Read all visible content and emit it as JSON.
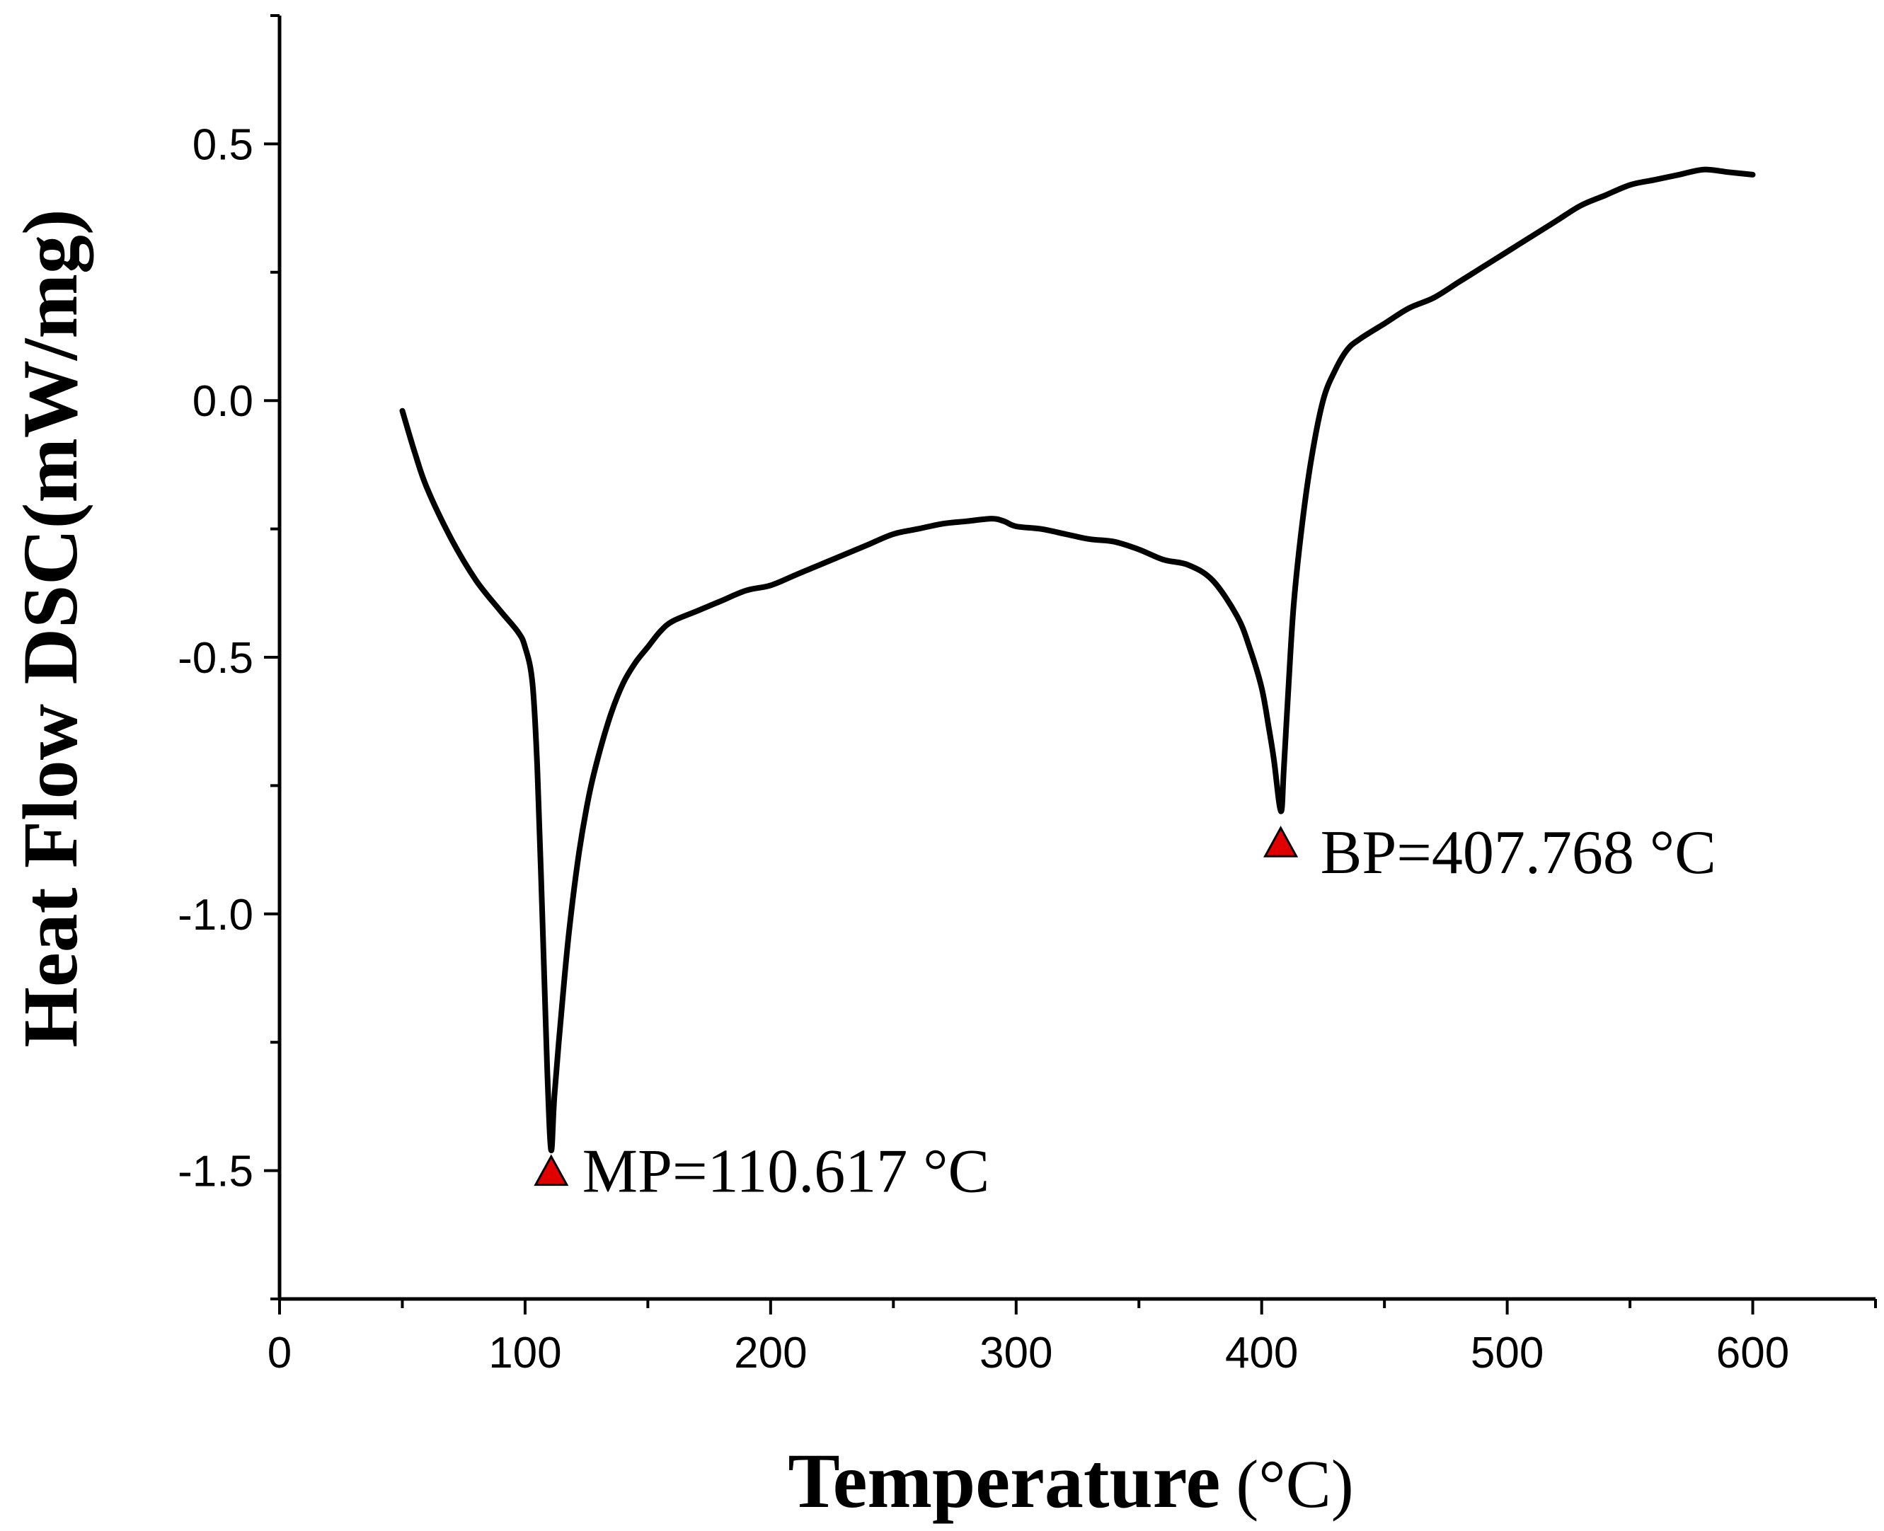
{
  "chart_data": {
    "type": "line",
    "title": "",
    "xlabel": "Temperature",
    "xlabel_unit": "(°C)",
    "ylabel": "Heat Flow DSC(mW/mg)",
    "xlim": [
      0,
      650
    ],
    "ylim": [
      -1.75,
      0.75
    ],
    "x_ticks": [
      0,
      100,
      200,
      300,
      400,
      500,
      600
    ],
    "x_tick_labels": [
      "0",
      "100",
      "200",
      "300",
      "400",
      "500",
      "600"
    ],
    "y_ticks": [
      0.5,
      0.0,
      -0.5,
      -1.0,
      -1.5
    ],
    "y_tick_labels": [
      "0.5",
      "0.0",
      "-0.5",
      "-1.0",
      "-1.5"
    ],
    "series": [
      {
        "name": "DSC",
        "color": "#000000",
        "x": [
          50,
          55,
          60,
          70,
          80,
          90,
          97,
          100,
          103,
          105,
          107,
          109,
          110.6,
          112,
          115,
          118,
          122,
          126,
          130,
          135,
          140,
          145,
          150,
          155,
          160,
          170,
          180,
          190,
          200,
          210,
          220,
          230,
          240,
          250,
          260,
          270,
          280,
          290,
          295,
          300,
          310,
          320,
          330,
          340,
          350,
          360,
          370,
          380,
          390,
          395,
          400,
          403,
          405,
          407.8,
          409,
          411,
          413,
          416,
          420,
          425,
          430,
          435,
          440,
          450,
          460,
          470,
          480,
          490,
          500,
          510,
          520,
          530,
          540,
          550,
          560,
          570,
          580,
          590,
          600
        ],
        "y": [
          -0.02,
          -0.1,
          -0.17,
          -0.27,
          -0.35,
          -0.41,
          -0.45,
          -0.48,
          -0.55,
          -0.72,
          -1.0,
          -1.3,
          -1.46,
          -1.35,
          -1.18,
          -1.03,
          -0.88,
          -0.77,
          -0.69,
          -0.61,
          -0.55,
          -0.51,
          -0.48,
          -0.45,
          -0.43,
          -0.41,
          -0.39,
          -0.37,
          -0.36,
          -0.34,
          -0.32,
          -0.3,
          -0.28,
          -0.26,
          -0.25,
          -0.24,
          -0.235,
          -0.23,
          -0.235,
          -0.245,
          -0.25,
          -0.26,
          -0.27,
          -0.275,
          -0.29,
          -0.31,
          -0.32,
          -0.35,
          -0.42,
          -0.48,
          -0.56,
          -0.64,
          -0.7,
          -0.8,
          -0.72,
          -0.55,
          -0.4,
          -0.26,
          -0.12,
          0.0,
          0.06,
          0.1,
          0.12,
          0.15,
          0.18,
          0.2,
          0.23,
          0.26,
          0.29,
          0.32,
          0.35,
          0.38,
          0.4,
          0.42,
          0.43,
          0.44,
          0.45,
          0.445,
          0.44
        ]
      }
    ],
    "annotations": [
      {
        "text": "MP=110.617 °C",
        "x": 110.617,
        "y": -1.5,
        "marker": "triangle",
        "marker_color": "#e00000"
      },
      {
        "text": "BP=407.768 °C",
        "x": 407.768,
        "y": -0.86,
        "marker": "triangle",
        "marker_color": "#e00000"
      }
    ],
    "grid": false,
    "legend": "none"
  }
}
